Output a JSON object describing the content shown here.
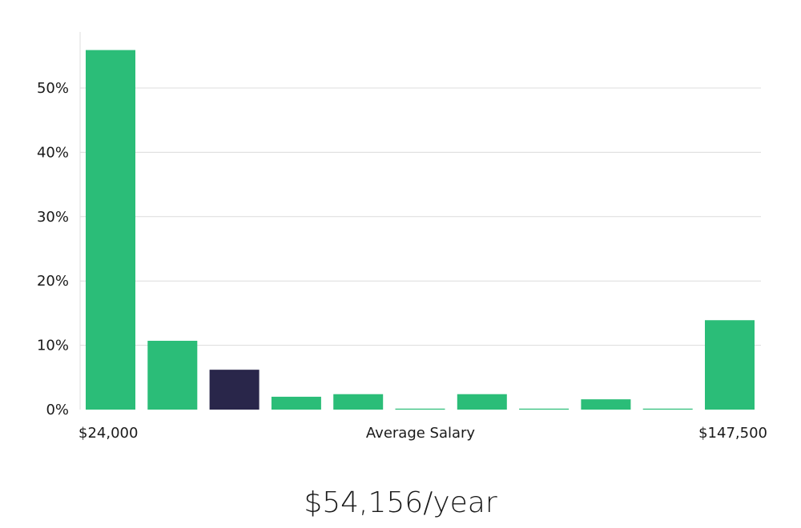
{
  "chart_data": {
    "type": "bar",
    "title": "",
    "xlabel": "Average Salary",
    "ylabel": "",
    "x_min_label": "$24,000",
    "x_max_label": "$147,500",
    "ylim": [
      0,
      57
    ],
    "yticks": [
      0,
      10,
      20,
      30,
      40,
      50
    ],
    "ytick_labels": [
      "0%",
      "10%",
      "20%",
      "30%",
      "40%",
      "50%"
    ],
    "values": [
      55.9,
      10.7,
      6.2,
      2.0,
      2.4,
      0.1,
      2.4,
      0.1,
      1.6,
      0.1,
      13.9
    ],
    "highlight_index": 2,
    "colors": {
      "bar": "#2bbd78",
      "highlight": "#29264a",
      "grid": "#dcdcdc"
    }
  },
  "headline": "$54,156/year"
}
